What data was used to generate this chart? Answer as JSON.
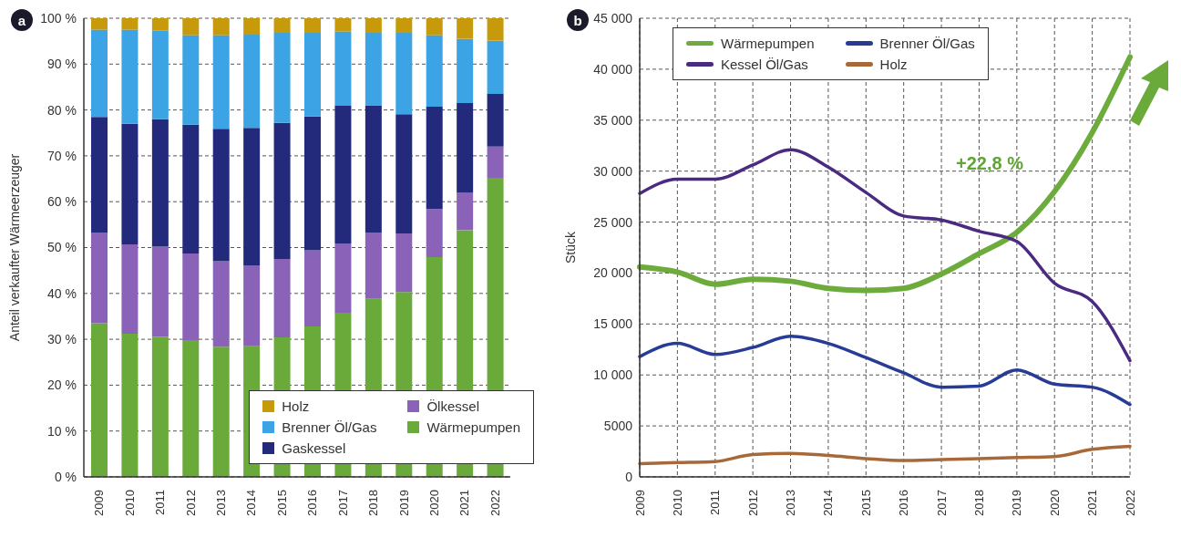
{
  "chart_data": [
    {
      "type": "bar",
      "title": "a",
      "ylabel": "Anteil verkaufter Wärmeerzeuger",
      "stacked": true,
      "grid": "y",
      "legend": "bottom right",
      "categories": [
        "2009",
        "2010",
        "2011",
        "2012",
        "2013",
        "2014",
        "2015",
        "2016",
        "2017",
        "2018",
        "2019",
        "2020",
        "2021",
        "2022"
      ],
      "ylim": [
        0,
        100
      ],
      "yticks": [
        {
          "value": 0,
          "label": "0 %"
        },
        {
          "value": 10,
          "label": "10 %"
        },
        {
          "value": 20,
          "label": "20 %"
        },
        {
          "value": 30,
          "label": "30 %"
        },
        {
          "value": 40,
          "label": "40 %"
        },
        {
          "value": 50,
          "label": "50 %"
        },
        {
          "value": 60,
          "label": "60 %"
        },
        {
          "value": 70,
          "label": "70 %"
        },
        {
          "value": 80,
          "label": "80 %"
        },
        {
          "value": 90,
          "label": "90 %"
        },
        {
          "value": 100,
          "label": "100 %"
        }
      ],
      "series": [
        {
          "name": "Wärmepumpen",
          "color": "#6aaa3a",
          "values": [
            33.5,
            31.2,
            30.5,
            29.8,
            28.4,
            28.5,
            30.4,
            32.8,
            35.8,
            38.8,
            40.3,
            47.9,
            53.8,
            65.2
          ]
        },
        {
          "name": "Ölkessel",
          "color": "#8a63b8",
          "values": [
            19.8,
            19.5,
            19.7,
            18.9,
            18.6,
            17.6,
            17.1,
            16.6,
            15.1,
            14.5,
            12.8,
            10.5,
            8.2,
            6.8
          ]
        },
        {
          "name": "Gaskessel",
          "color": "#232a7c",
          "values": [
            25.2,
            26.3,
            27.8,
            28.1,
            28.9,
            30.0,
            29.7,
            29.2,
            30.0,
            27.7,
            26.0,
            22.3,
            19.5,
            11.5
          ]
        },
        {
          "name": "Brenner Öl/Gas",
          "color": "#3ca4e4",
          "values": [
            19.0,
            20.5,
            19.3,
            19.5,
            20.4,
            20.3,
            19.6,
            18.2,
            16.2,
            15.8,
            17.7,
            15.6,
            14.0,
            11.6
          ]
        },
        {
          "name": "Holz",
          "color": "#c79a0c",
          "values": [
            2.5,
            2.5,
            2.7,
            3.7,
            3.7,
            3.6,
            3.2,
            3.2,
            2.9,
            3.2,
            3.2,
            3.7,
            4.5,
            4.9
          ]
        }
      ]
    },
    {
      "type": "line",
      "title": "b",
      "ylabel": "Stück",
      "grid": true,
      "legend": "top left",
      "marker": "none",
      "line_style": "solid",
      "annotations": [
        "+22,8 %"
      ],
      "categories": [
        "2009",
        "2010",
        "2011",
        "2012",
        "2013",
        "2014",
        "2015",
        "2016",
        "2017",
        "2018",
        "2019",
        "2020",
        "2021",
        "2022"
      ],
      "ylim": [
        0,
        45000
      ],
      "yticks": [
        0,
        5000,
        {
          "value": 10000,
          "label": "10 000"
        },
        {
          "value": 15000,
          "label": "15 000"
        },
        {
          "value": 20000,
          "label": "20 000"
        },
        {
          "value": 25000,
          "label": "25 000"
        },
        {
          "value": 30000,
          "label": "30 000"
        },
        {
          "value": 35000,
          "label": "35 000"
        },
        {
          "value": 40000,
          "label": "40 000"
        },
        {
          "value": 45000,
          "label": "45 000"
        }
      ],
      "series": [
        {
          "name": "Wärmepumpen",
          "color": "#6cab3c",
          "values": [
            20600,
            20100,
            18900,
            19400,
            19200,
            18500,
            18300,
            18500,
            19900,
            21900,
            24000,
            28000,
            33800,
            41200
          ]
        },
        {
          "name": "Kessel Öl/Gas",
          "color": "#4b2a82",
          "values": [
            27800,
            29200,
            29200,
            30600,
            32100,
            30400,
            27900,
            25600,
            25200,
            24100,
            23100,
            19000,
            17200,
            11400
          ]
        },
        {
          "name": "Brenner Öl/Gas",
          "color": "#283c96",
          "values": [
            11800,
            13100,
            12000,
            12700,
            13800,
            13100,
            11700,
            10200,
            8800,
            8900,
            10500,
            9100,
            8800,
            7100
          ]
        },
        {
          "name": "Holz",
          "color": "#a8693a",
          "values": [
            1300,
            1400,
            1500,
            2200,
            2300,
            2100,
            1800,
            1600,
            1700,
            1800,
            1900,
            2000,
            2700,
            3000
          ]
        }
      ]
    }
  ]
}
